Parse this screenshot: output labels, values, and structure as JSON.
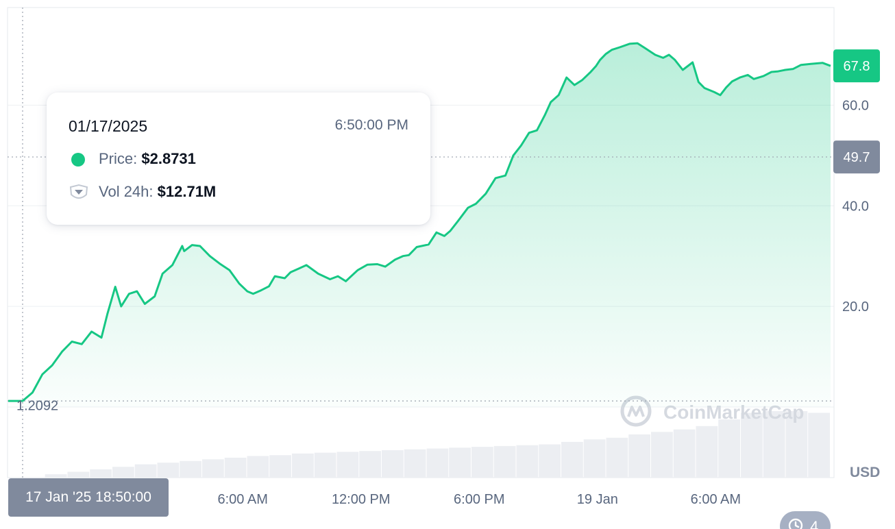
{
  "chart_data": {
    "type": "line",
    "title": "",
    "xlabel": "",
    "ylabel": "",
    "currency": "USD",
    "y_axis": {
      "min": 0,
      "max": 79.4,
      "ticks": [
        "20.0",
        "40.0",
        "60.0"
      ],
      "tick_values": [
        20,
        40,
        60
      ]
    },
    "x_axis": {
      "ticks": [
        "6:00 AM",
        "12:00 PM",
        "6:00 PM",
        "19 Jan",
        "6:00 AM"
      ],
      "tick_hours": [
        11.17,
        17.17,
        23.17,
        29.17,
        35.17
      ],
      "unit": "hours since 17 Jan '25 18:50"
    },
    "reference_lines": [
      {
        "label": "67.8",
        "value": 67.8,
        "style": "current",
        "color": "#16c784"
      },
      {
        "label": "49.7",
        "value": 49.7,
        "style": "dotted",
        "color": "#808a9d"
      },
      {
        "label": "1.2092",
        "value": 1.2092,
        "style": "dotted"
      }
    ],
    "series": [
      {
        "color": "#16c784",
        "hours": [
          0,
          0.5,
          1.0,
          1.5,
          2.0,
          2.5,
          3.0,
          3.5,
          4.0,
          4.3,
          4.7,
          5.0,
          5.4,
          5.8,
          6.2,
          6.7,
          7.1,
          7.6,
          8.1,
          8.2,
          8.6,
          9.0,
          9.5,
          10.0,
          10.5,
          11.0,
          11.4,
          11.7,
          12.1,
          12.5,
          12.8,
          13.3,
          13.6,
          14.0,
          14.4,
          15.0,
          15.6,
          16.0,
          16.4,
          17.0,
          17.5,
          18.0,
          18.4,
          18.9,
          19.3,
          19.6,
          20.0,
          20.6,
          21.0,
          21.4,
          21.7,
          22.1,
          22.6,
          23.0,
          23.5,
          24.0,
          24.5,
          24.9,
          25.3,
          25.7,
          26.1,
          26.5,
          26.8,
          27.2,
          27.6,
          28.0,
          28.4,
          28.8,
          29.1,
          29.3,
          29.6,
          29.9,
          30.3,
          30.8,
          31.2,
          31.6,
          32.1,
          32.5,
          32.8,
          33.1,
          33.5,
          34.0,
          34.3,
          34.6,
          35.1,
          35.4,
          35.7,
          36.0,
          36.4,
          36.8,
          37.1,
          37.6,
          38.0,
          38.3,
          38.7,
          39.1,
          39.5,
          40.0,
          40.6,
          41.0
        ],
        "price": [
          1.21,
          2.87,
          6.5,
          8.3,
          11.0,
          13.0,
          12.5,
          15.0,
          13.8,
          18.5,
          23.9,
          20.0,
          22.5,
          23.0,
          20.5,
          22.0,
          26.5,
          28.2,
          32.0,
          31.0,
          32.2,
          32.0,
          30.0,
          28.5,
          27.2,
          24.5,
          23.0,
          22.5,
          23.2,
          24.0,
          26.0,
          25.6,
          26.8,
          27.5,
          28.2,
          26.5,
          25.4,
          26.0,
          25.0,
          27.2,
          28.3,
          28.4,
          27.9,
          29.3,
          30.0,
          30.2,
          31.8,
          32.3,
          34.7,
          34.0,
          35.0,
          37.0,
          39.6,
          40.4,
          42.4,
          45.5,
          46.0,
          50.0,
          52.0,
          54.5,
          55.0,
          58.0,
          60.6,
          62.0,
          65.5,
          64.0,
          65.0,
          66.5,
          67.8,
          69.0,
          70.2,
          71.0,
          71.5,
          72.2,
          72.3,
          71.3,
          70.0,
          69.4,
          70.0,
          69.0,
          67.0,
          68.5,
          64.6,
          63.4,
          62.6,
          62.0,
          63.5,
          64.7,
          65.5,
          66.0,
          65.2,
          65.8,
          66.6,
          66.7,
          67.0,
          67.2,
          68.0,
          68.2,
          68.4,
          67.8
        ],
        "note": ""
      }
    ],
    "volume": {
      "values": [
        0.5,
        4,
        7,
        10,
        13,
        16,
        18,
        20,
        22,
        24,
        26,
        27,
        29,
        30,
        31,
        32,
        33,
        34,
        35,
        36,
        37,
        38,
        39,
        40,
        43,
        46,
        48,
        52,
        55,
        58,
        62,
        70,
        78,
        80,
        80,
        78
      ]
    }
  },
  "tooltip": {
    "date": "01/17/2025",
    "time": "6:50:00 PM",
    "price_label": "Price:",
    "price_value": "$2.8731",
    "vol_label": "Vol 24h:",
    "vol_value": "$12.71M"
  },
  "cursor_time": "17 Jan '25 18:50:00",
  "currency_label": "USD",
  "watermark": "CoinMarketCap",
  "history_count": "4",
  "colors": {
    "accent": "#16c784",
    "badge_grey": "#808a9d",
    "text_secondary": "#58667e"
  }
}
